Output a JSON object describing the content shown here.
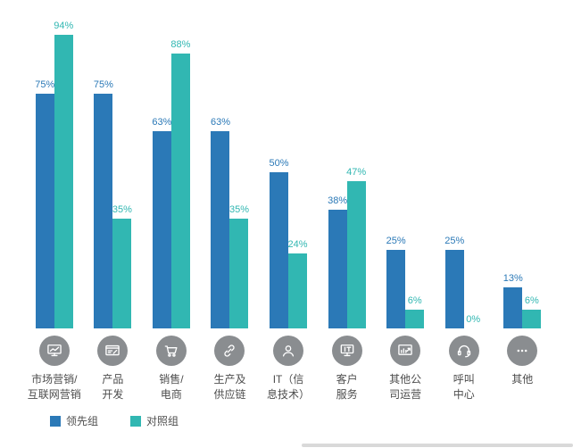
{
  "chart_data": {
    "type": "bar",
    "title": "",
    "value_suffix": "%",
    "ylim": [
      0,
      100
    ],
    "grid": false,
    "legend_position": "bottom-left",
    "categories": [
      {
        "label": "市场营销/\n互联网营销",
        "icon": "monitor-chart-icon"
      },
      {
        "label": "产品\n开发",
        "icon": "product-design-icon"
      },
      {
        "label": "销售/\n电商",
        "icon": "shopping-cart-icon"
      },
      {
        "label": "生产及\n供应链",
        "icon": "chain-link-icon"
      },
      {
        "label": "IT（信\n息技术）",
        "icon": "person-icon"
      },
      {
        "label": "客户\n服务",
        "icon": "it-monitor-icon"
      },
      {
        "label": "其他公\n司运营",
        "icon": "chart-arrow-icon"
      },
      {
        "label": "呼叫\n中心",
        "icon": "headset-icon"
      },
      {
        "label": "其他",
        "icon": "ellipsis-icon"
      }
    ],
    "series": [
      {
        "name": "领先组",
        "color": "#2b79b7",
        "values": [
          75,
          75,
          63,
          63,
          50,
          38,
          25,
          25,
          13
        ]
      },
      {
        "name": "对照组",
        "color": "#31b7b2",
        "values": [
          94,
          35,
          88,
          35,
          24,
          47,
          6,
          0,
          6
        ]
      }
    ]
  }
}
